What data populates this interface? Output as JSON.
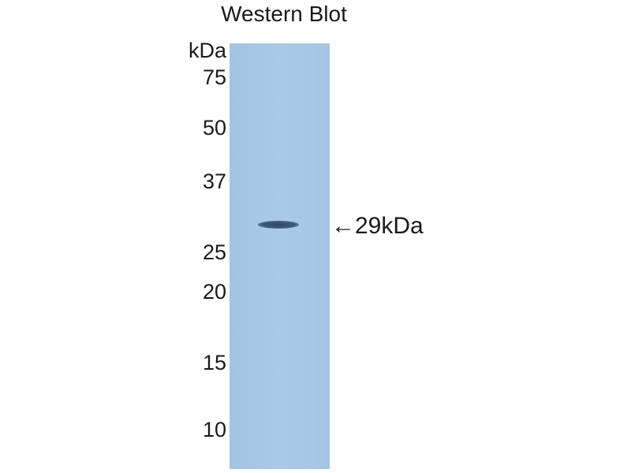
{
  "title": "Western Blot",
  "unit_label": "kDa",
  "markers": [
    "75",
    "50",
    "37",
    "25",
    "20",
    "15",
    "10"
  ],
  "band_annotation": {
    "arrow": "←",
    "label": "29kDa"
  },
  "colors": {
    "membrane": "#a6c8e6",
    "band": "#3e5a78"
  }
}
